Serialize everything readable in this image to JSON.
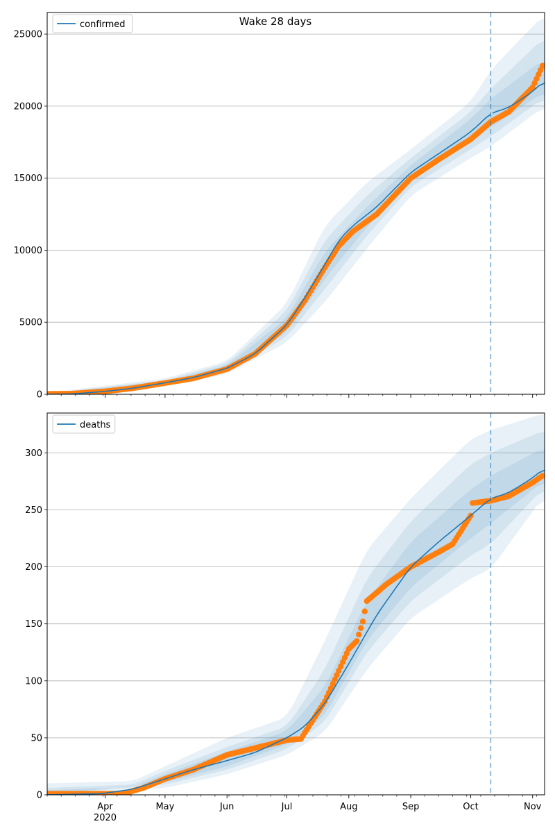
{
  "title": "Wake 28 days",
  "x_ticks": {
    "months": [
      "Apr",
      "May",
      "Jun",
      "Jul",
      "Aug",
      "Sep",
      "Oct",
      "Nov"
    ],
    "month_dates": [
      "2020-04-01",
      "2020-05-01",
      "2020-06-01",
      "2020-07-01",
      "2020-08-01",
      "2020-09-01",
      "2020-10-01",
      "2020-11-01"
    ],
    "year_label": "2020"
  },
  "colors": {
    "model": "#1f77b4",
    "observed": "#ff7f0e",
    "band": "#1f77b4",
    "grid": "#b0b0b0",
    "forecast_line": "#1f77b4"
  },
  "chart_data": [
    {
      "type": "line",
      "name": "confirmed",
      "legend": {
        "label": "confirmed",
        "placement": "top-left"
      },
      "xlim": [
        "2020-03-03",
        "2020-11-07"
      ],
      "ylim": [
        0,
        26500
      ],
      "yticks": [
        0,
        5000,
        10000,
        15000,
        20000,
        25000
      ],
      "grid": true,
      "forecast_start": "2020-10-11",
      "model_knots": [
        [
          "2020-03-03",
          0
        ],
        [
          "2020-03-15",
          20
        ],
        [
          "2020-04-01",
          200
        ],
        [
          "2020-04-15",
          420
        ],
        [
          "2020-05-01",
          800
        ],
        [
          "2020-05-15",
          1150
        ],
        [
          "2020-06-01",
          1800
        ],
        [
          "2020-06-15",
          2800
        ],
        [
          "2020-07-01",
          4800
        ],
        [
          "2020-07-10",
          6700
        ],
        [
          "2020-07-20",
          9000
        ],
        [
          "2020-07-27",
          10700
        ],
        [
          "2020-08-03",
          11700
        ],
        [
          "2020-08-15",
          13000
        ],
        [
          "2020-09-01",
          15400
        ],
        [
          "2020-09-15",
          16700
        ],
        [
          "2020-10-01",
          18200
        ],
        [
          "2020-10-11",
          19500
        ],
        [
          "2020-10-20",
          19900
        ],
        [
          "2020-11-01",
          21000
        ],
        [
          "2020-11-07",
          21800
        ]
      ],
      "observed_knots": [
        [
          "2020-03-03",
          30
        ],
        [
          "2020-03-15",
          40
        ],
        [
          "2020-04-01",
          200
        ],
        [
          "2020-04-15",
          420
        ],
        [
          "2020-05-01",
          780
        ],
        [
          "2020-05-15",
          1100
        ],
        [
          "2020-06-01",
          1750
        ],
        [
          "2020-06-15",
          2800
        ],
        [
          "2020-07-01",
          4800
        ],
        [
          "2020-07-10",
          6500
        ],
        [
          "2020-07-20",
          8800
        ],
        [
          "2020-07-27",
          10300
        ],
        [
          "2020-08-03",
          11300
        ],
        [
          "2020-08-15",
          12500
        ],
        [
          "2020-09-01",
          15000
        ],
        [
          "2020-09-15",
          16300
        ],
        [
          "2020-10-01",
          17700
        ],
        [
          "2020-10-11",
          18900
        ],
        [
          "2020-10-20",
          19600
        ],
        [
          "2020-11-01",
          21300
        ],
        [
          "2020-11-06",
          22800
        ]
      ],
      "bands": [
        {
          "lo": [
            [
              "2020-03-03",
              0
            ],
            [
              "2020-05-01",
              600
            ],
            [
              "2020-06-01",
              1400
            ],
            [
              "2020-07-01",
              3600
            ],
            [
              "2020-07-20",
              6400
            ],
            [
              "2020-08-10",
              10100
            ],
            [
              "2020-09-01",
              13800
            ],
            [
              "2020-10-01",
              16400
            ],
            [
              "2020-10-11",
              17200
            ],
            [
              "2020-11-07",
              20000
            ]
          ],
          "hi": [
            [
              "2020-03-03",
              100
            ],
            [
              "2020-05-01",
              1100
            ],
            [
              "2020-06-01",
              2300
            ],
            [
              "2020-07-01",
              6300
            ],
            [
              "2020-07-20",
              11700
            ],
            [
              "2020-08-10",
              14700
            ],
            [
              "2020-09-01",
              17000
            ],
            [
              "2020-10-01",
              20300
            ],
            [
              "2020-10-11",
              22500
            ],
            [
              "2020-11-07",
              26400
            ]
          ]
        },
        {
          "lo": [
            [
              "2020-03-03",
              0
            ],
            [
              "2020-05-01",
              680
            ],
            [
              "2020-06-01",
              1550
            ],
            [
              "2020-07-01",
              4000
            ],
            [
              "2020-07-20",
              7300
            ],
            [
              "2020-08-10",
              11000
            ],
            [
              "2020-09-01",
              14400
            ],
            [
              "2020-10-01",
              17000
            ],
            [
              "2020-10-11",
              17900
            ],
            [
              "2020-11-07",
              20600
            ]
          ],
          "hi": [
            [
              "2020-03-03",
              60
            ],
            [
              "2020-05-01",
              980
            ],
            [
              "2020-06-01",
              2150
            ],
            [
              "2020-07-01",
              5800
            ],
            [
              "2020-07-20",
              10700
            ],
            [
              "2020-08-10",
              13800
            ],
            [
              "2020-09-01",
              16400
            ],
            [
              "2020-10-01",
              19600
            ],
            [
              "2020-10-11",
              21200
            ],
            [
              "2020-11-07",
              24800
            ]
          ]
        },
        {
          "lo": [
            [
              "2020-03-03",
              0
            ],
            [
              "2020-05-01",
              730
            ],
            [
              "2020-06-01",
              1650
            ],
            [
              "2020-07-01",
              4300
            ],
            [
              "2020-07-20",
              8000
            ],
            [
              "2020-08-10",
              11600
            ],
            [
              "2020-09-01",
              14900
            ],
            [
              "2020-10-01",
              17500
            ],
            [
              "2020-10-11",
              18500
            ],
            [
              "2020-11-07",
              21000
            ]
          ],
          "hi": [
            [
              "2020-03-03",
              40
            ],
            [
              "2020-05-01",
              900
            ],
            [
              "2020-06-01",
              2000
            ],
            [
              "2020-07-01",
              5300
            ],
            [
              "2020-07-20",
              9900
            ],
            [
              "2020-08-10",
              13000
            ],
            [
              "2020-09-01",
              15900
            ],
            [
              "2020-10-01",
              19100
            ],
            [
              "2020-10-11",
              20500
            ],
            [
              "2020-11-07",
              23300
            ]
          ]
        }
      ]
    },
    {
      "type": "line",
      "name": "deaths",
      "legend": {
        "label": "deaths",
        "placement": "top-left"
      },
      "xlim": [
        "2020-03-03",
        "2020-11-07"
      ],
      "ylim": [
        0,
        335
      ],
      "yticks": [
        0,
        50,
        100,
        150,
        200,
        250,
        300
      ],
      "grid": true,
      "forecast_start": "2020-10-11",
      "model_knots": [
        [
          "2020-03-03",
          0
        ],
        [
          "2020-03-30",
          1
        ],
        [
          "2020-04-15",
          5
        ],
        [
          "2020-05-01",
          14
        ],
        [
          "2020-05-15",
          22
        ],
        [
          "2020-06-01",
          30
        ],
        [
          "2020-06-15",
          37
        ],
        [
          "2020-07-01",
          50
        ],
        [
          "2020-07-10",
          60
        ],
        [
          "2020-07-20",
          80
        ],
        [
          "2020-08-01",
          115
        ],
        [
          "2020-08-15",
          158
        ],
        [
          "2020-09-01",
          200
        ],
        [
          "2020-09-15",
          222
        ],
        [
          "2020-10-01",
          245
        ],
        [
          "2020-10-11",
          260
        ],
        [
          "2020-10-20",
          265
        ],
        [
          "2020-11-01",
          278
        ],
        [
          "2020-11-07",
          287
        ]
      ],
      "observed_knots": [
        [
          "2020-03-03",
          1
        ],
        [
          "2020-04-10",
          1
        ],
        [
          "2020-04-20",
          6
        ],
        [
          "2020-05-01",
          14
        ],
        [
          "2020-05-15",
          22
        ],
        [
          "2020-06-01",
          35
        ],
        [
          "2020-06-15",
          41
        ],
        [
          "2020-07-01",
          48
        ],
        [
          "2020-07-08",
          49
        ],
        [
          "2020-07-20",
          82
        ],
        [
          "2020-08-01",
          128
        ],
        [
          "2020-08-05",
          135
        ],
        [
          "2020-08-08",
          152
        ],
        [
          "2020-08-10",
          170
        ],
        [
          "2020-08-20",
          185
        ],
        [
          "2020-09-01",
          200
        ],
        [
          "2020-09-15",
          213
        ],
        [
          "2020-09-22",
          220
        ],
        [
          "2020-10-01",
          245
        ],
        [
          "2020-10-02",
          256
        ],
        [
          "2020-10-11",
          258
        ],
        [
          "2020-10-20",
          262
        ],
        [
          "2020-11-01",
          274
        ],
        [
          "2020-11-06",
          280
        ]
      ],
      "bands": [
        {
          "lo": [
            [
              "2020-03-03",
              0
            ],
            [
              "2020-05-01",
              6
            ],
            [
              "2020-06-01",
              18
            ],
            [
              "2020-07-01",
              35
            ],
            [
              "2020-07-20",
              55
            ],
            [
              "2020-08-10",
              110
            ],
            [
              "2020-09-01",
              155
            ],
            [
              "2020-10-01",
              190
            ],
            [
              "2020-10-11",
              198
            ],
            [
              "2020-11-07",
              263
            ]
          ],
          "hi": [
            [
              "2020-03-03",
              10
            ],
            [
              "2020-04-15",
              12
            ],
            [
              "2020-05-01",
              25
            ],
            [
              "2020-06-01",
              50
            ],
            [
              "2020-07-01",
              68
            ],
            [
              "2020-07-20",
              135
            ],
            [
              "2020-08-10",
              215
            ],
            [
              "2020-09-01",
              260
            ],
            [
              "2020-10-01",
              312
            ],
            [
              "2020-10-11",
              320
            ],
            [
              "2020-11-07",
              335
            ]
          ]
        },
        {
          "lo": [
            [
              "2020-03-03",
              0
            ],
            [
              "2020-05-01",
              9
            ],
            [
              "2020-06-01",
              22
            ],
            [
              "2020-07-01",
              40
            ],
            [
              "2020-07-20",
              64
            ],
            [
              "2020-08-10",
              125
            ],
            [
              "2020-09-01",
              170
            ],
            [
              "2020-10-01",
              210
            ],
            [
              "2020-10-11",
              220
            ],
            [
              "2020-11-07",
              270
            ]
          ],
          "hi": [
            [
              "2020-03-03",
              6
            ],
            [
              "2020-04-15",
              9
            ],
            [
              "2020-05-01",
              21
            ],
            [
              "2020-06-01",
              42
            ],
            [
              "2020-07-01",
              60
            ],
            [
              "2020-07-20",
              110
            ],
            [
              "2020-08-10",
              190
            ],
            [
              "2020-09-01",
              240
            ],
            [
              "2020-10-01",
              290
            ],
            [
              "2020-10-11",
              300
            ],
            [
              "2020-11-07",
              320
            ]
          ]
        },
        {
          "lo": [
            [
              "2020-03-03",
              0
            ],
            [
              "2020-05-01",
              11
            ],
            [
              "2020-06-01",
              25
            ],
            [
              "2020-07-01",
              44
            ],
            [
              "2020-07-20",
              70
            ],
            [
              "2020-08-10",
              135
            ],
            [
              "2020-09-01",
              182
            ],
            [
              "2020-10-01",
              225
            ],
            [
              "2020-10-11",
              238
            ],
            [
              "2020-11-07",
              276
            ]
          ],
          "hi": [
            [
              "2020-03-03",
              4
            ],
            [
              "2020-04-15",
              7
            ],
            [
              "2020-05-01",
              18
            ],
            [
              "2020-06-01",
              38
            ],
            [
              "2020-07-01",
              56
            ],
            [
              "2020-07-20",
              95
            ],
            [
              "2020-08-10",
              170
            ],
            [
              "2020-09-01",
              222
            ],
            [
              "2020-10-01",
              268
            ],
            [
              "2020-10-11",
              280
            ],
            [
              "2020-11-07",
              305
            ]
          ]
        }
      ]
    }
  ]
}
